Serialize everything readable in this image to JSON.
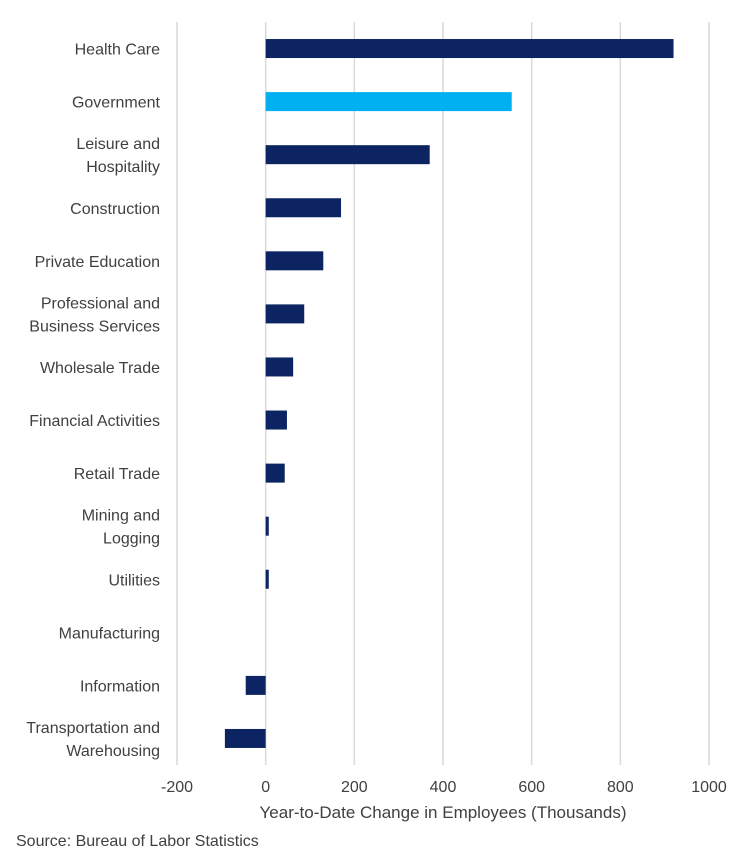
{
  "chart_data": {
    "type": "bar",
    "orientation": "horizontal",
    "categories": [
      "Health Care",
      "Government",
      "Leisure and Hospitality",
      "Construction",
      "Private Education",
      "Professional and Business Services",
      "Wholesale Trade",
      "Financial Activities",
      "Retail Trade",
      "Mining and Logging",
      "Utilities",
      "Manufacturing",
      "Information",
      "Transportation and Warehousing"
    ],
    "category_label_lines": [
      [
        "Health Care"
      ],
      [
        "Government"
      ],
      [
        "Leisure and",
        "Hospitality"
      ],
      [
        "Construction"
      ],
      [
        "Private Education"
      ],
      [
        "Professional and",
        "Business Services"
      ],
      [
        "Wholesale Trade"
      ],
      [
        "Financial Activities"
      ],
      [
        "Retail Trade"
      ],
      [
        "Mining and",
        "Logging"
      ],
      [
        "Utilities"
      ],
      [
        "Manufacturing"
      ],
      [
        "Information"
      ],
      [
        "Transportation and",
        "Warehousing"
      ]
    ],
    "values": [
      920,
      555,
      370,
      170,
      130,
      87,
      62,
      48,
      43,
      7,
      7,
      0,
      -45,
      -92
    ],
    "bar_colors": [
      "#0c2461",
      "#00b0f0",
      "#0c2461",
      "#0c2461",
      "#0c2461",
      "#0c2461",
      "#0c2461",
      "#0c2461",
      "#0c2461",
      "#0c2461",
      "#0c2461",
      "#0c2461",
      "#0c2461",
      "#0c2461"
    ],
    "xlim": [
      -200,
      1000
    ],
    "xticks": [
      -200,
      0,
      200,
      400,
      600,
      800,
      1000
    ],
    "xtick_labels": [
      "-200",
      "0",
      "200",
      "400",
      "600",
      "800",
      "1000"
    ],
    "xlabel": "Year-to-Date Change in Employees (Thousands)",
    "ylabel": "",
    "title": "",
    "grid": "vertical",
    "legend": "none",
    "source": "Source: Bureau of Labor Statistics"
  },
  "colors": {
    "primary_bar": "#0c2461",
    "highlight_bar": "#00b0f0",
    "gridline": "#d9d9d9",
    "text": "#404040"
  }
}
